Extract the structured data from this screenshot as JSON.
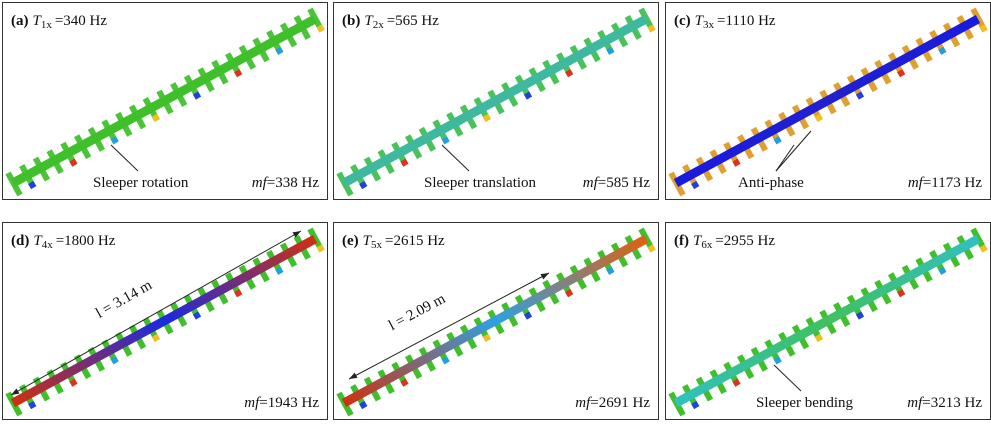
{
  "panels": [
    {
      "label": "(a)",
      "symbol": "T",
      "subscript": "1x",
      "frequency": "=340 Hz",
      "mf_symbol": "mf",
      "mf_value": "=338 Hz",
      "annotation": "Sleeper rotation"
    },
    {
      "label": "(b)",
      "symbol": "T",
      "subscript": "2x",
      "frequency": "=565 Hz",
      "mf_symbol": "mf",
      "mf_value": "=585 Hz",
      "annotation": "Sleeper translation"
    },
    {
      "label": "(c)",
      "symbol": "T",
      "subscript": "3x",
      "frequency": "=1110 Hz",
      "mf_symbol": "mf",
      "mf_value": "=1173 Hz",
      "annotation": "Anti-phase"
    },
    {
      "label": "(d)",
      "symbol": "T",
      "subscript": "4x",
      "frequency": "=1800 Hz",
      "mf_symbol": "mf",
      "mf_value": "=1943 Hz",
      "length": "l = 3.14 m"
    },
    {
      "label": "(e)",
      "symbol": "T",
      "subscript": "5x",
      "frequency": "=2615 Hz",
      "mf_symbol": "mf",
      "mf_value": "=2691 Hz",
      "length": "l = 2.09 m"
    },
    {
      "label": "(f)",
      "symbol": "T",
      "subscript": "6x",
      "frequency": "=2955 Hz",
      "mf_symbol": "mf",
      "mf_value": "=3213 Hz",
      "annotation": "Sleeper bending"
    }
  ]
}
